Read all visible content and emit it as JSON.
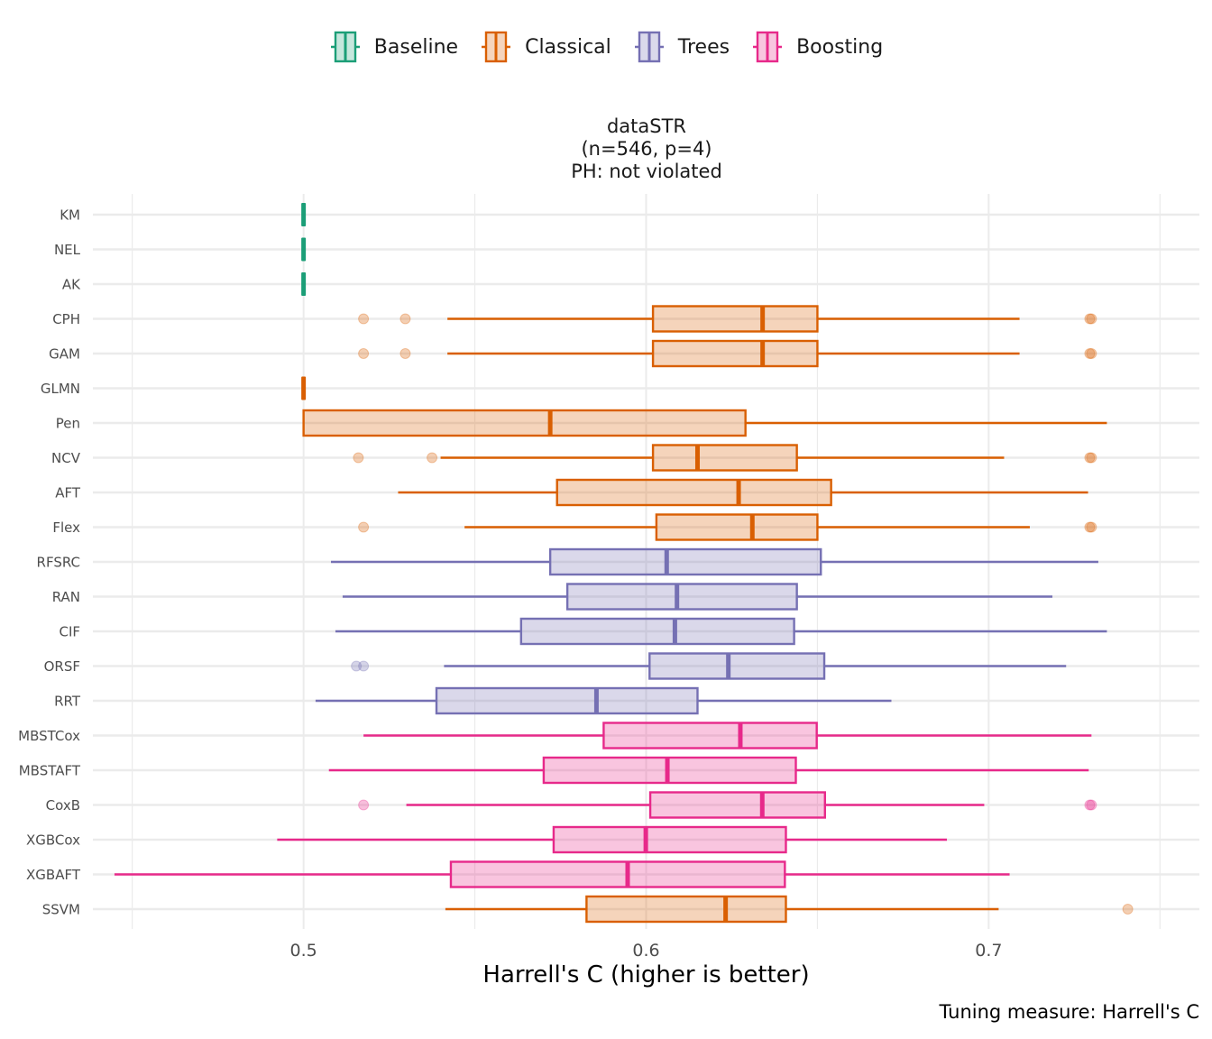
{
  "legend": [
    {
      "name": "Baseline",
      "color": "#1B9E77",
      "fill": "#C6E7DD"
    },
    {
      "name": "Classical",
      "color": "#D95F02",
      "fill": "#F5D5BE"
    },
    {
      "name": "Trees",
      "color": "#7570B3",
      "fill": "#DAD9EB"
    },
    {
      "name": "Boosting",
      "color": "#E7298A",
      "fill": "#F8C6DF"
    }
  ],
  "title_lines": [
    "dataSTR",
    "(n=546, p=4)",
    "PH: not violated"
  ],
  "caption": "Tuning measure: Harrell's C",
  "chart_data": {
    "type": "boxplot",
    "orientation": "horizontal",
    "title": "dataSTR (n=546, p=4) PH: not violated",
    "xlabel": "Harrell's C (higher is better)",
    "ylabel": "",
    "xlim": [
      0.4385,
      0.7615
    ],
    "xticks": [
      0.5,
      0.6,
      0.7
    ],
    "xtick_labels": [
      "0.5",
      "0.6",
      "0.7"
    ],
    "minor_gridlines": [
      0.45,
      0.55,
      0.65,
      0.75
    ],
    "grid": true,
    "legend_position": "top",
    "caption": "Tuning measure: Harrell's C",
    "models": [
      {
        "name": "KM",
        "group": "Baseline",
        "lower": 0.5,
        "q1": 0.5,
        "median": 0.5,
        "q3": 0.5,
        "upper": 0.5,
        "outliers": []
      },
      {
        "name": "NEL",
        "group": "Baseline",
        "lower": 0.5,
        "q1": 0.5,
        "median": 0.5,
        "q3": 0.5,
        "upper": 0.5,
        "outliers": []
      },
      {
        "name": "AK",
        "group": "Baseline",
        "lower": 0.5,
        "q1": 0.5,
        "median": 0.5,
        "q3": 0.5,
        "upper": 0.5,
        "outliers": []
      },
      {
        "name": "CPH",
        "group": "Classical",
        "lower": 0.542,
        "q1": 0.602,
        "median": 0.634,
        "q3": 0.65,
        "upper": 0.709,
        "outliers": [
          0.5175,
          0.5297,
          0.7295,
          0.73
        ]
      },
      {
        "name": "GAM",
        "group": "Classical",
        "lower": 0.542,
        "q1": 0.602,
        "median": 0.634,
        "q3": 0.65,
        "upper": 0.709,
        "outliers": [
          0.5175,
          0.5297,
          0.7295,
          0.73
        ]
      },
      {
        "name": "GLMN",
        "group": "Classical",
        "lower": 0.5,
        "q1": 0.5,
        "median": 0.5,
        "q3": 0.5,
        "upper": 0.5,
        "outliers": []
      },
      {
        "name": "Pen",
        "group": "Classical",
        "lower": 0.5,
        "q1": 0.5,
        "median": 0.572,
        "q3": 0.629,
        "upper": 0.7345,
        "outliers": []
      },
      {
        "name": "NCV",
        "group": "Classical",
        "lower": 0.54,
        "q1": 0.602,
        "median": 0.615,
        "q3": 0.644,
        "upper": 0.7045,
        "outliers": [
          0.516,
          0.5375,
          0.7295,
          0.73
        ]
      },
      {
        "name": "AFT",
        "group": "Classical",
        "lower": 0.5276,
        "q1": 0.574,
        "median": 0.627,
        "q3": 0.654,
        "upper": 0.729,
        "outliers": []
      },
      {
        "name": "Flex",
        "group": "Classical",
        "lower": 0.547,
        "q1": 0.603,
        "median": 0.631,
        "q3": 0.65,
        "upper": 0.712,
        "outliers": [
          0.5175,
          0.7295,
          0.73
        ]
      },
      {
        "name": "RFSRC",
        "group": "Trees",
        "lower": 0.508,
        "q1": 0.572,
        "median": 0.606,
        "q3": 0.651,
        "upper": 0.732,
        "outliers": []
      },
      {
        "name": "RAN",
        "group": "Trees",
        "lower": 0.5114,
        "q1": 0.577,
        "median": 0.609,
        "q3": 0.644,
        "upper": 0.7186,
        "outliers": []
      },
      {
        "name": "CIF",
        "group": "Trees",
        "lower": 0.5093,
        "q1": 0.5635,
        "median": 0.6084,
        "q3": 0.6432,
        "upper": 0.7345,
        "outliers": []
      },
      {
        "name": "ORSF",
        "group": "Trees",
        "lower": 0.541,
        "q1": 0.601,
        "median": 0.624,
        "q3": 0.652,
        "upper": 0.7226,
        "outliers": [
          0.5154,
          0.5175
        ]
      },
      {
        "name": "RRT",
        "group": "Trees",
        "lower": 0.5035,
        "q1": 0.5388,
        "median": 0.5855,
        "q3": 0.615,
        "upper": 0.6716,
        "outliers": []
      },
      {
        "name": "MBSTCox",
        "group": "Boosting",
        "lower": 0.5175,
        "q1": 0.5876,
        "median": 0.6275,
        "q3": 0.6498,
        "upper": 0.73,
        "outliers": []
      },
      {
        "name": "MBSTAFT",
        "group": "Boosting",
        "lower": 0.5074,
        "q1": 0.5701,
        "median": 0.6062,
        "q3": 0.6437,
        "upper": 0.7292,
        "outliers": []
      },
      {
        "name": "CoxB",
        "group": "Boosting",
        "lower": 0.53,
        "q1": 0.6012,
        "median": 0.6339,
        "q3": 0.6522,
        "upper": 0.6987,
        "outliers": [
          0.5175,
          0.7295,
          0.73
        ]
      },
      {
        "name": "XGBCox",
        "group": "Boosting",
        "lower": 0.4923,
        "q1": 0.573,
        "median": 0.5999,
        "q3": 0.6408,
        "upper": 0.6878,
        "outliers": []
      },
      {
        "name": "XGBAFT",
        "group": "Boosting",
        "lower": 0.4448,
        "q1": 0.543,
        "median": 0.5946,
        "q3": 0.6405,
        "upper": 0.7061,
        "outliers": []
      },
      {
        "name": "SSVM",
        "group": "Classical",
        "lower": 0.5414,
        "q1": 0.5826,
        "median": 0.6232,
        "q3": 0.6408,
        "upper": 0.7029,
        "outliers": [
          0.7406
        ]
      }
    ]
  }
}
